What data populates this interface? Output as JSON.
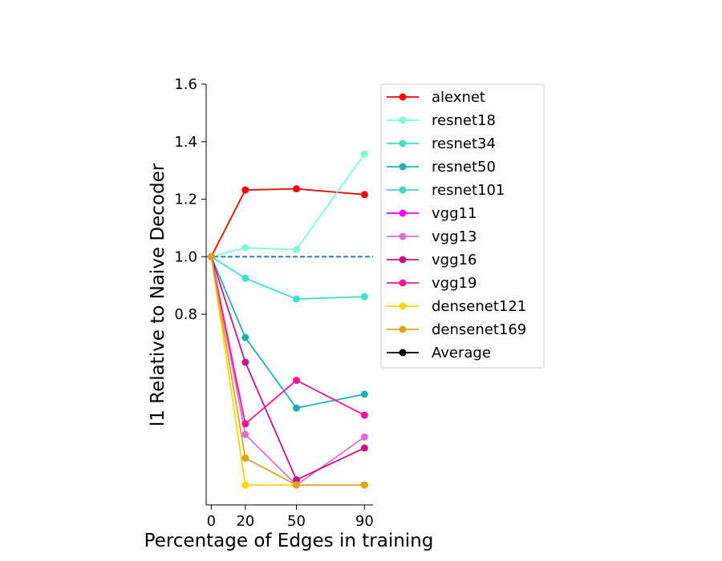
{
  "chart_data": {
    "type": "line",
    "xlabel": "Percentage of Edges in training",
    "ylabel": "l1 Relative to Naive Decoder",
    "x": [
      0,
      20,
      50,
      90
    ],
    "xticks": [
      0,
      20,
      50,
      90
    ],
    "yticks": [
      0.8,
      1.0,
      1.2,
      1.4,
      1.6
    ],
    "ylim": [
      0.137,
      1.6
    ],
    "xlim": [
      -3,
      95
    ],
    "grid": false,
    "legend_position": "right",
    "reference_line": {
      "y": 1.0,
      "style": "dashed",
      "color": "#1f77b4"
    },
    "series": [
      {
        "name": "alexnet",
        "color": "#ff0000",
        "values": [
          1.0,
          1.232,
          1.236,
          1.216
        ]
      },
      {
        "name": "resnet18",
        "color": "#7fffd4",
        "values": [
          1.0,
          1.031,
          1.025,
          1.357
        ]
      },
      {
        "name": "resnet34",
        "color": "#40e0d0",
        "values": [
          1.0,
          0.925,
          0.853,
          0.861
        ]
      },
      {
        "name": "resnet50",
        "color": "#20b2aa",
        "values": [
          1.0,
          0.719,
          0.474,
          0.522
        ]
      },
      {
        "name": "resnet101",
        "color": "#48d1cc",
        "values": [
          1.0,
          null,
          null,
          null
        ]
      },
      {
        "name": "vgg11",
        "color": "#ff00ff",
        "values": [
          1.0,
          null,
          null,
          null
        ]
      },
      {
        "name": "vgg13",
        "color": "#da70d6",
        "values": [
          1.0,
          0.382,
          0.206,
          0.373
        ]
      },
      {
        "name": "vgg16",
        "color": "#c71585",
        "values": [
          1.0,
          0.633,
          0.224,
          0.335
        ]
      },
      {
        "name": "vgg19",
        "color": "#ff1493",
        "values": [
          1.0,
          0.419,
          0.57,
          0.449
        ]
      },
      {
        "name": "densenet121",
        "color": "#ffd700",
        "values": [
          1.0,
          0.206,
          0.206,
          0.206
        ]
      },
      {
        "name": "densenet169",
        "color": "#daa520",
        "values": [
          1.0,
          0.3,
          0.206,
          0.206
        ]
      },
      {
        "name": "Average",
        "color": "#000000",
        "values": [
          null,
          null,
          null,
          null
        ]
      }
    ]
  }
}
